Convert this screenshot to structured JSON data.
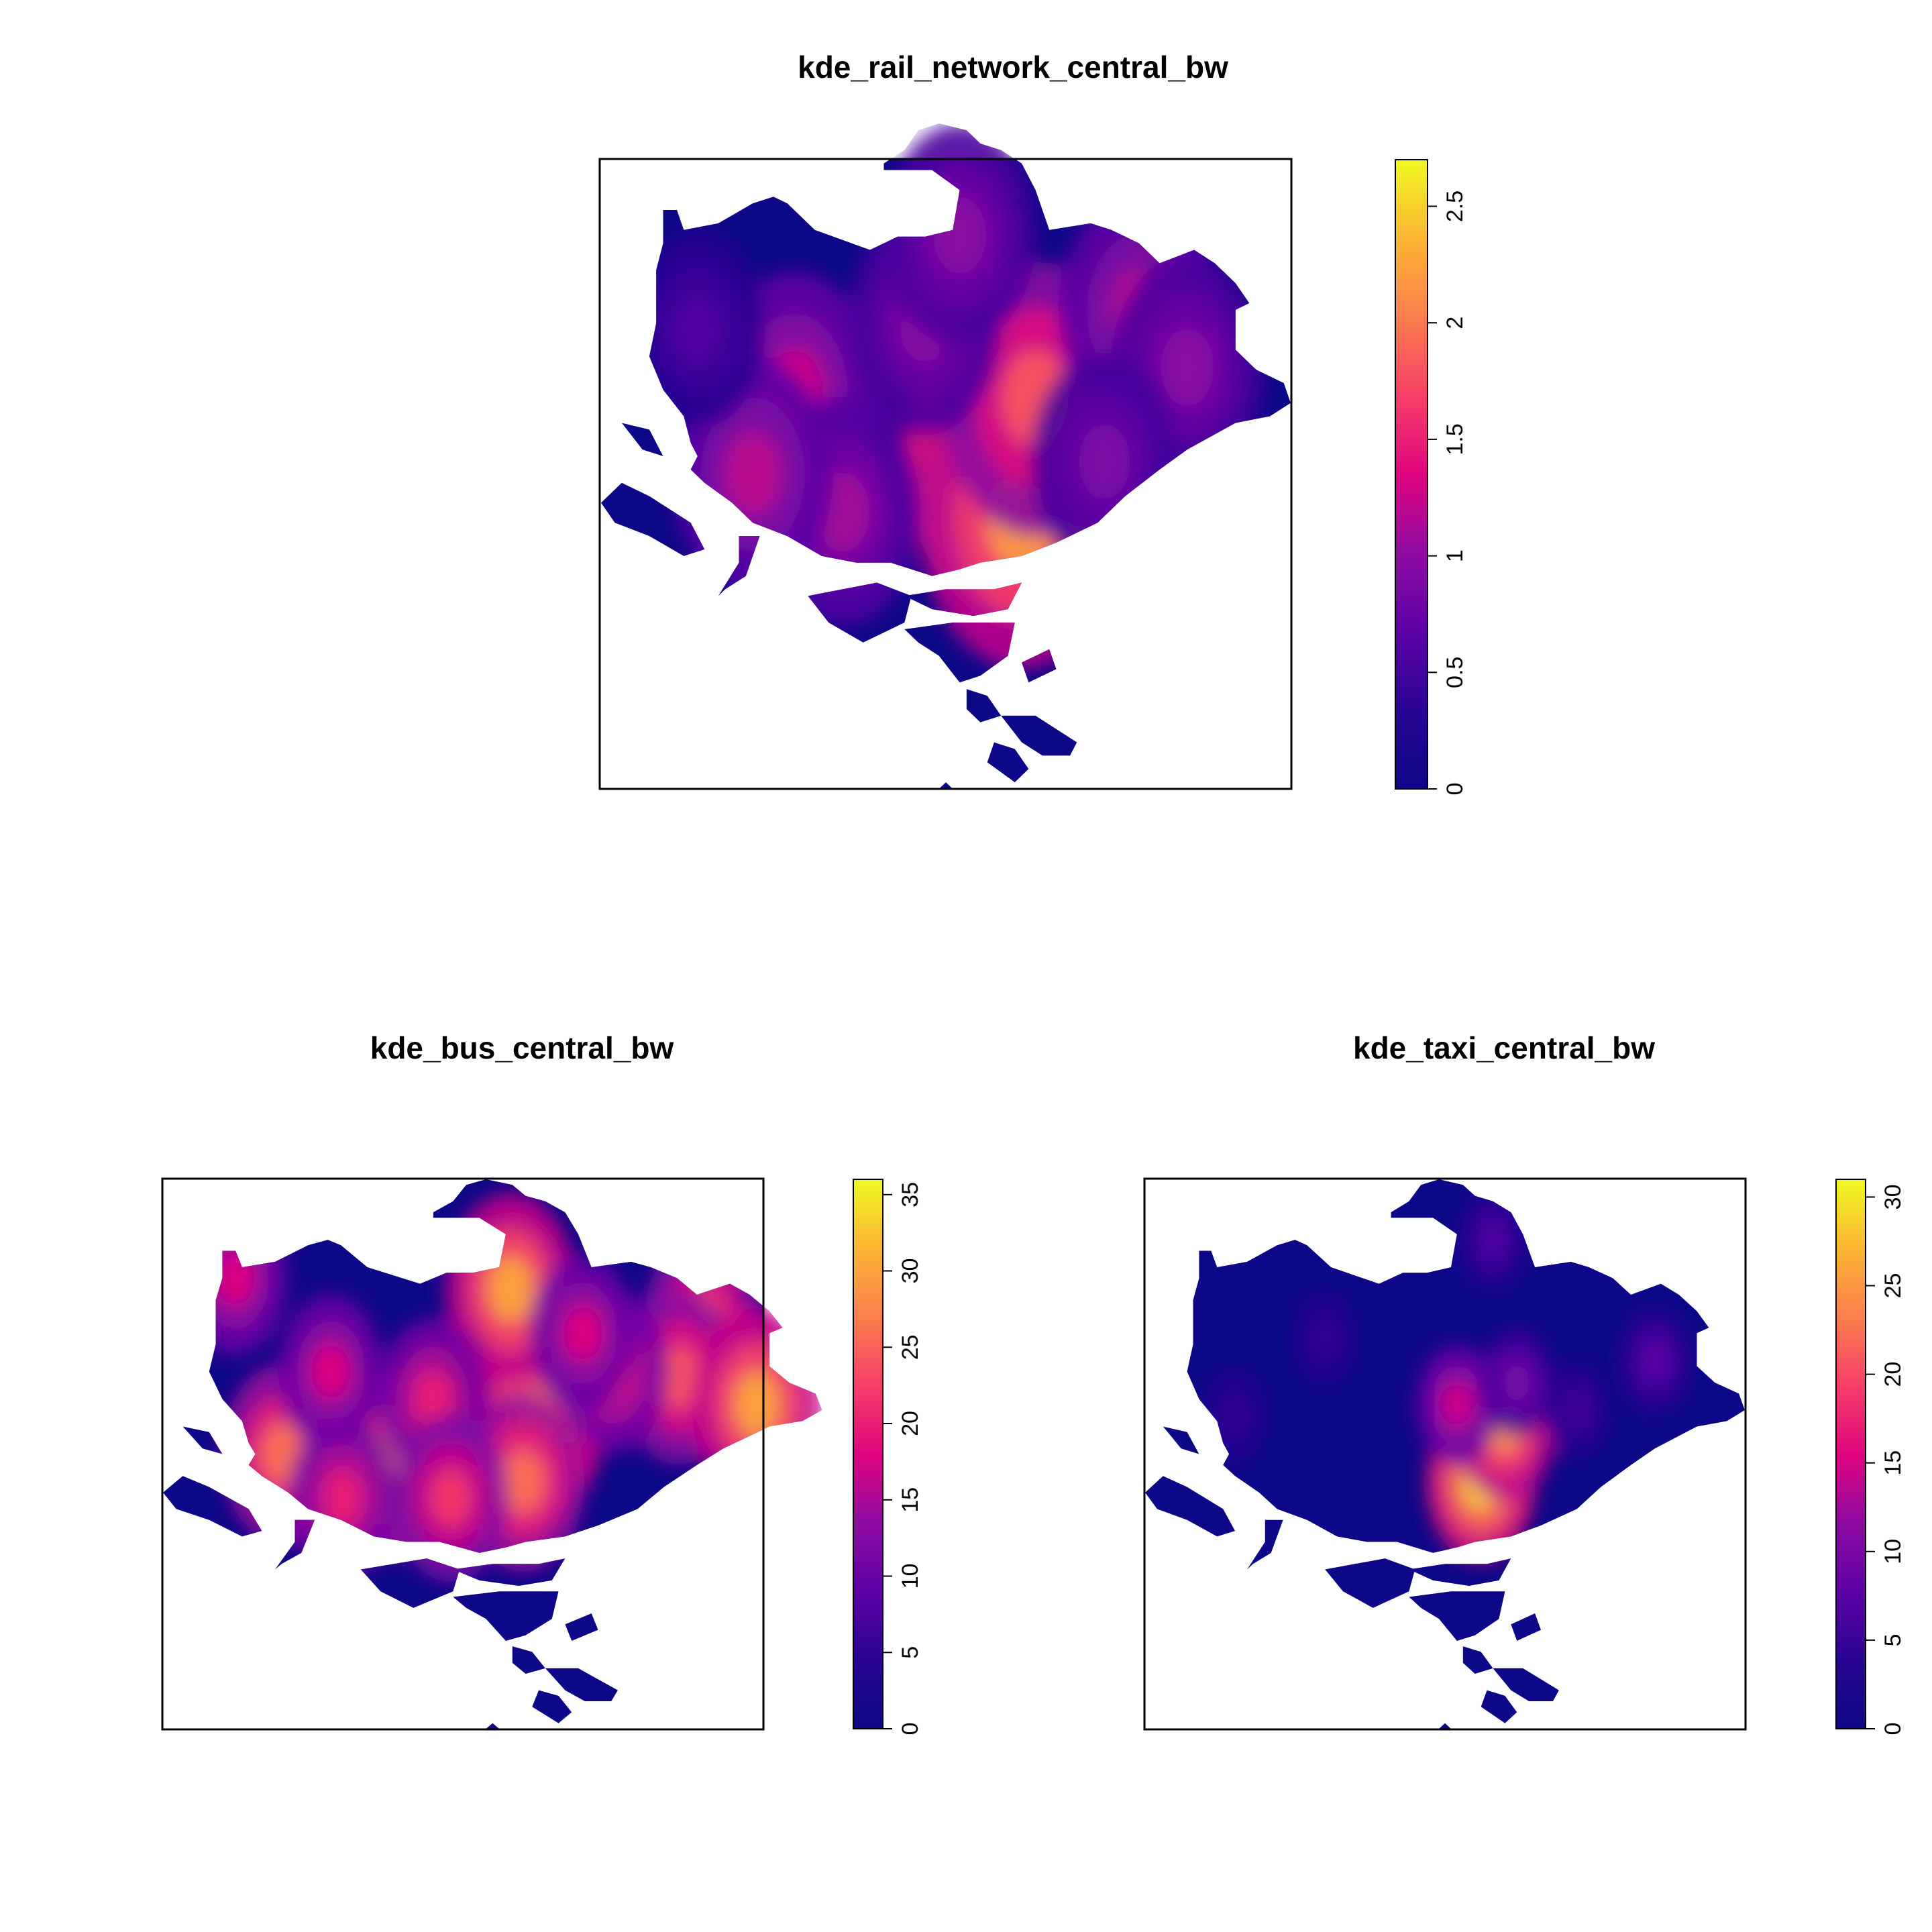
{
  "chart_data": [
    {
      "type": "heatmap",
      "title": "kde_rail_network_central_bw",
      "xlabel": "",
      "ylabel": "",
      "legend": {
        "position": "right",
        "range": [
          0,
          2.7
        ],
        "ticks": [
          0,
          0.5,
          1,
          1.5,
          2,
          2.5
        ],
        "tick_labels": [
          "0",
          "0.5",
          "1",
          "1.5",
          "2",
          "2.5"
        ]
      },
      "hotspots": [
        {
          "x": 0.6,
          "y": 0.47,
          "value": 2.6
        },
        {
          "x": 0.61,
          "y": 0.57,
          "value": 2.2
        },
        {
          "x": 0.63,
          "y": 0.38,
          "value": 1.8
        },
        {
          "x": 0.28,
          "y": 0.37,
          "value": 1.3
        },
        {
          "x": 0.35,
          "y": 0.56,
          "value": 1.1
        },
        {
          "x": 0.22,
          "y": 0.5,
          "value": 1.2
        },
        {
          "x": 0.47,
          "y": 0.26,
          "value": 1.0
        },
        {
          "x": 0.78,
          "y": 0.24,
          "value": 1.2
        },
        {
          "x": 0.85,
          "y": 0.33,
          "value": 1.0
        },
        {
          "x": 0.52,
          "y": 0.12,
          "value": 1.0
        },
        {
          "x": 0.73,
          "y": 0.48,
          "value": 0.9
        },
        {
          "x": 0.14,
          "y": 0.27,
          "value": 0.6
        }
      ]
    },
    {
      "type": "heatmap",
      "title": "kde_bus_central_bw",
      "xlabel": "",
      "ylabel": "",
      "legend": {
        "position": "right",
        "range": [
          0,
          36
        ],
        "ticks": [
          0,
          5,
          10,
          15,
          20,
          25,
          30,
          35
        ],
        "tick_labels": [
          "0",
          "5",
          "10",
          "15",
          "20",
          "25",
          "30",
          "35"
        ]
      },
      "hotspots": [
        {
          "x": 0.62,
          "y": 0.45,
          "value": 32
        },
        {
          "x": 0.6,
          "y": 0.55,
          "value": 26
        },
        {
          "x": 0.38,
          "y": 0.52,
          "value": 27
        },
        {
          "x": 0.2,
          "y": 0.5,
          "value": 26
        },
        {
          "x": 0.58,
          "y": 0.2,
          "value": 30
        },
        {
          "x": 0.9,
          "y": 0.26,
          "value": 24
        },
        {
          "x": 0.86,
          "y": 0.36,
          "value": 24
        },
        {
          "x": 0.45,
          "y": 0.4,
          "value": 20
        },
        {
          "x": 0.28,
          "y": 0.35,
          "value": 18
        },
        {
          "x": 0.12,
          "y": 0.18,
          "value": 18
        },
        {
          "x": 0.75,
          "y": 0.35,
          "value": 20
        },
        {
          "x": 0.48,
          "y": 0.58,
          "value": 22
        },
        {
          "x": 0.99,
          "y": 0.41,
          "value": 30
        },
        {
          "x": 0.7,
          "y": 0.28,
          "value": 18
        },
        {
          "x": 0.3,
          "y": 0.58,
          "value": 20
        }
      ]
    },
    {
      "type": "heatmap",
      "title": "kde_taxi_central_bw",
      "xlabel": "",
      "ylabel": "",
      "legend": {
        "position": "right",
        "range": [
          0,
          31
        ],
        "ticks": [
          0,
          5,
          10,
          15,
          20,
          25,
          30
        ],
        "tick_labels": [
          "0",
          "5",
          "10",
          "15",
          "20",
          "25",
          "30"
        ]
      },
      "hotspots": [
        {
          "x": 0.56,
          "y": 0.55,
          "value": 29
        },
        {
          "x": 0.6,
          "y": 0.45,
          "value": 25
        },
        {
          "x": 0.52,
          "y": 0.41,
          "value": 15
        },
        {
          "x": 0.62,
          "y": 0.37,
          "value": 10
        },
        {
          "x": 0.85,
          "y": 0.33,
          "value": 8
        },
        {
          "x": 0.3,
          "y": 0.29,
          "value": 5
        },
        {
          "x": 0.72,
          "y": 0.42,
          "value": 6
        },
        {
          "x": 0.15,
          "y": 0.43,
          "value": 5
        },
        {
          "x": 0.58,
          "y": 0.11,
          "value": 7
        }
      ]
    }
  ]
}
